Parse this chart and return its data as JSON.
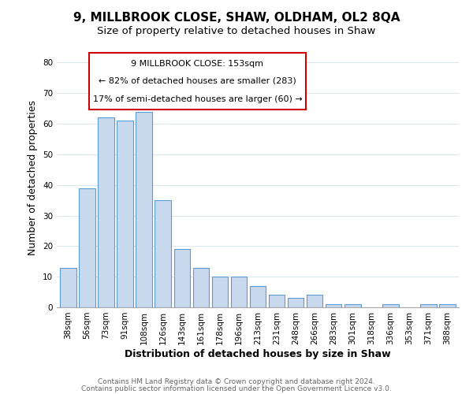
{
  "title": "9, MILLBROOK CLOSE, SHAW, OLDHAM, OL2 8QA",
  "subtitle": "Size of property relative to detached houses in Shaw",
  "xlabel": "Distribution of detached houses by size in Shaw",
  "ylabel": "Number of detached properties",
  "categories": [
    "38sqm",
    "56sqm",
    "73sqm",
    "91sqm",
    "108sqm",
    "126sqm",
    "143sqm",
    "161sqm",
    "178sqm",
    "196sqm",
    "213sqm",
    "231sqm",
    "248sqm",
    "266sqm",
    "283sqm",
    "301sqm",
    "318sqm",
    "336sqm",
    "353sqm",
    "371sqm",
    "388sqm"
  ],
  "values": [
    13,
    39,
    62,
    61,
    64,
    35,
    19,
    13,
    10,
    10,
    7,
    4,
    3,
    4,
    1,
    1,
    0,
    1,
    0,
    1,
    1
  ],
  "bar_color": "#c8d9ee",
  "bar_edge_color": "#5b9bd5",
  "ylim": [
    0,
    85
  ],
  "yticks": [
    0,
    10,
    20,
    30,
    40,
    50,
    60,
    70,
    80
  ],
  "annotation_title": "9 MILLBROOK CLOSE: 153sqm",
  "annotation_line1": "← 82% of detached houses are smaller (283)",
  "annotation_line2": "17% of semi-detached houses are larger (60) →",
  "annotation_box_color": "#ffffff",
  "annotation_border_color": "#cc0000",
  "footer_line1": "Contains HM Land Registry data © Crown copyright and database right 2024.",
  "footer_line2": "Contains public sector information licensed under the Open Government Licence v3.0.",
  "background_color": "#ffffff",
  "grid_color": "#dce6f1",
  "title_fontsize": 11,
  "subtitle_fontsize": 9.5,
  "axis_label_fontsize": 9,
  "tick_fontsize": 7.5,
  "footer_fontsize": 6.5
}
